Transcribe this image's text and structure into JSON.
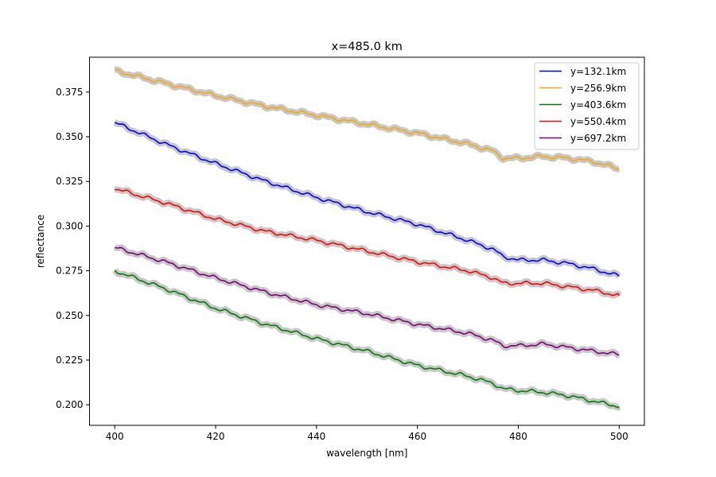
{
  "chart_data": {
    "type": "line",
    "title": "x=485.0 km",
    "xlabel": "wavelength [nm]",
    "ylabel": "reflectance",
    "xlim": [
      395,
      505
    ],
    "ylim": [
      0.1885,
      0.3945
    ],
    "xticks": [
      400,
      420,
      440,
      460,
      480,
      500
    ],
    "xtick_labels": [
      "400",
      "420",
      "440",
      "460",
      "480",
      "500"
    ],
    "yticks": [
      0.2,
      0.225,
      0.25,
      0.275,
      0.3,
      0.325,
      0.35,
      0.375
    ],
    "ytick_labels": [
      "0.200",
      "0.225",
      "0.250",
      "0.275",
      "0.300",
      "0.325",
      "0.350",
      "0.375"
    ],
    "grid": false,
    "legend_position": "top-right",
    "uncertainty_band_color": "#c8c8c8",
    "x": [
      400,
      410,
      420,
      430,
      440,
      450,
      460,
      470,
      475,
      477,
      480,
      485,
      490,
      495,
      500
    ],
    "series": [
      {
        "name": "y=132.1km",
        "color": "#0000ff",
        "values": [
          0.358,
          0.346,
          0.335,
          0.325,
          0.316,
          0.308,
          0.301,
          0.292,
          0.287,
          0.283,
          0.281,
          0.281,
          0.279,
          0.276,
          0.272
        ]
      },
      {
        "name": "y=256.9km",
        "color": "#ffa500",
        "values": [
          0.387,
          0.38,
          0.373,
          0.367,
          0.362,
          0.357,
          0.352,
          0.346,
          0.342,
          0.338,
          0.338,
          0.339,
          0.338,
          0.336,
          0.332
        ]
      },
      {
        "name": "y=403.6km",
        "color": "#008000",
        "values": [
          0.275,
          0.265,
          0.254,
          0.245,
          0.237,
          0.23,
          0.222,
          0.216,
          0.212,
          0.209,
          0.208,
          0.207,
          0.205,
          0.202,
          0.199
        ]
      },
      {
        "name": "y=550.4km",
        "color": "#ff0000",
        "values": [
          0.321,
          0.313,
          0.304,
          0.297,
          0.292,
          0.286,
          0.28,
          0.275,
          0.271,
          0.268,
          0.268,
          0.268,
          0.266,
          0.264,
          0.261
        ]
      },
      {
        "name": "y=697.2km",
        "color": "#800080",
        "values": [
          0.288,
          0.28,
          0.271,
          0.263,
          0.256,
          0.251,
          0.245,
          0.24,
          0.236,
          0.233,
          0.233,
          0.234,
          0.232,
          0.23,
          0.228
        ]
      }
    ]
  }
}
